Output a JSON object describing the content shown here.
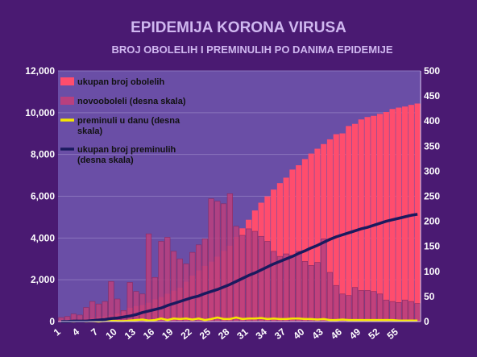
{
  "chart_data": {
    "type": "bar",
    "title": "EPIDEMIJA KORONA VIRUSA",
    "subtitle": "BROJ OBOLELIH I PREMINULIH PO DANIMA EPIDEMIJE",
    "x": [
      1,
      2,
      3,
      4,
      5,
      6,
      7,
      8,
      9,
      10,
      11,
      12,
      13,
      14,
      15,
      16,
      17,
      18,
      19,
      20,
      21,
      22,
      23,
      24,
      25,
      26,
      27,
      28,
      29,
      30,
      31,
      32,
      33,
      34,
      35,
      36,
      37,
      38,
      39,
      40,
      41,
      42,
      43,
      44,
      45,
      46,
      47,
      48,
      49,
      50,
      51,
      52,
      53,
      54,
      55,
      56,
      57,
      58
    ],
    "x_tick_labels": [
      "1",
      "4",
      "7",
      "10",
      "13",
      "16",
      "19",
      "22",
      "25",
      "28",
      "31",
      "34",
      "37",
      "40",
      "43",
      "46",
      "49",
      "52",
      "55"
    ],
    "y_left": {
      "range": [
        0,
        12000
      ],
      "ticks": [
        "0",
        "2,000",
        "4,000",
        "6,000",
        "8,000",
        "10,000",
        "12,000"
      ]
    },
    "y_right": {
      "range": [
        0,
        500
      ],
      "ticks": [
        "0",
        "50",
        "100",
        "150",
        "200",
        "250",
        "300",
        "350",
        "400",
        "450",
        "500"
      ]
    },
    "legend": {
      "placement": "top-left"
    },
    "series": [
      {
        "name": "ukupan broj obolelih",
        "axis": "left",
        "kind": "bar",
        "color": "#ff4d6d",
        "values": [
          48,
          57,
          65,
          103,
          131,
          171,
          222,
          249,
          303,
          384,
          457,
          659,
          741,
          785,
          900,
          1060,
          1171,
          1329,
          1476,
          1624,
          1908,
          2200,
          2447,
          2666,
          2867,
          3105,
          3380,
          3630,
          4054,
          4465,
          4873,
          5318,
          5690,
          5994,
          6318,
          6630,
          6890,
          7276,
          7483,
          7779,
          8042,
          8275,
          8497,
          8724,
          8970,
          9009,
          9362,
          9464,
          9677,
          9791,
          9848,
          9943,
          10032,
          10176,
          10243,
          10295,
          10374,
          10438
        ]
      },
      {
        "name": "novooboleli (desna skala)",
        "axis": "right",
        "kind": "bar",
        "color": "#b8407e",
        "values": [
          8,
          10,
          15,
          13,
          28,
          40,
          35,
          40,
          80,
          45,
          22,
          78,
          60,
          55,
          175,
          88,
          160,
          168,
          140,
          125,
          115,
          138,
          153,
          165,
          245,
          240,
          235,
          255,
          190,
          172,
          185,
          180,
          170,
          160,
          140,
          130,
          135,
          132,
          140,
          120,
          112,
          118,
          165,
          98,
          72,
          55,
          52,
          68,
          62,
          62,
          60,
          55,
          43,
          40,
          38,
          43,
          40,
          36
        ]
      },
      {
        "name": "preminuli u danu (desna skala)",
        "axis": "right",
        "kind": "line",
        "color": "#f5e600",
        "values": [
          0,
          0,
          0,
          1,
          0,
          1,
          0,
          1,
          2,
          1,
          1,
          2,
          3,
          4,
          2,
          3,
          6,
          3,
          6,
          5,
          6,
          4,
          6,
          3,
          5,
          8,
          5,
          5,
          8,
          5,
          6,
          6,
          7,
          5,
          6,
          5,
          5,
          6,
          6,
          5,
          5,
          4,
          5,
          3,
          3,
          4,
          3,
          3,
          3,
          3,
          3,
          3,
          3,
          3,
          2,
          2,
          2,
          2
        ]
      },
      {
        "name": "ukupan broj preminulih (desna skala)",
        "axis": "right",
        "kind": "line",
        "color": "#1a1a5e",
        "values": [
          0,
          0,
          1,
          1,
          1,
          2,
          3,
          4,
          6,
          7,
          9,
          11,
          14,
          18,
          21,
          24,
          27,
          32,
          36,
          40,
          44,
          48,
          51,
          56,
          60,
          64,
          69,
          74,
          80,
          86,
          92,
          97,
          103,
          109,
          115,
          120,
          125,
          130,
          136,
          141,
          147,
          152,
          158,
          164,
          169,
          173,
          177,
          181,
          185,
          188,
          192,
          196,
          200,
          203,
          206,
          209,
          212,
          214
        ]
      }
    ]
  }
}
